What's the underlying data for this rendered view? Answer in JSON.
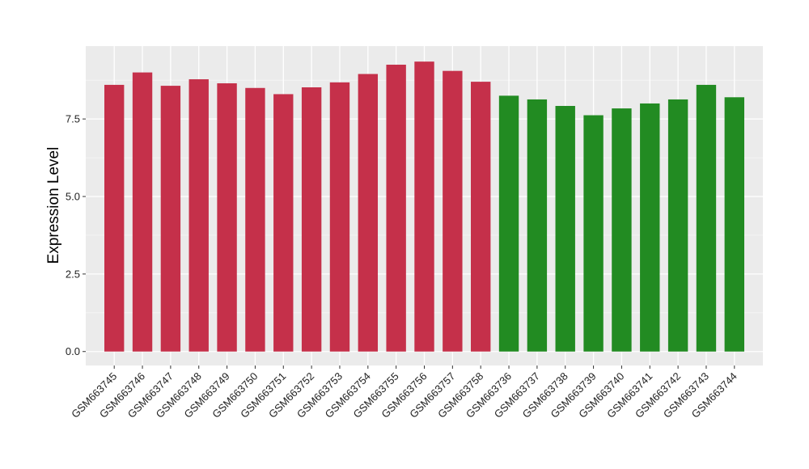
{
  "chart_data": {
    "type": "bar",
    "ylabel": "Expression Level",
    "xlabel": "",
    "ylim": [
      -0.45,
      9.85
    ],
    "yticks": [
      0.0,
      2.5,
      5.0,
      7.5
    ],
    "ytick_labels": [
      "0.0",
      "2.5",
      "5.0",
      "7.5"
    ],
    "categories": [
      "GSM663745",
      "GSM663746",
      "GSM663747",
      "GSM663748",
      "GSM663749",
      "GSM663750",
      "GSM663751",
      "GSM663752",
      "GSM663753",
      "GSM663754",
      "GSM663755",
      "GSM663756",
      "GSM663757",
      "GSM663758",
      "GSM663736",
      "GSM663737",
      "GSM663738",
      "GSM663739",
      "GSM663740",
      "GSM663741",
      "GSM663742",
      "GSM663743",
      "GSM663744"
    ],
    "values": [
      8.6,
      9.0,
      8.57,
      8.78,
      8.65,
      8.5,
      8.3,
      8.52,
      8.68,
      8.95,
      9.25,
      9.35,
      9.05,
      8.7,
      8.25,
      8.13,
      7.92,
      7.62,
      7.84,
      8.0,
      8.13,
      8.6,
      8.2
    ],
    "group_of_bar": [
      0,
      0,
      0,
      0,
      0,
      0,
      0,
      0,
      0,
      0,
      0,
      0,
      0,
      0,
      1,
      1,
      1,
      1,
      1,
      1,
      1,
      1,
      1
    ],
    "group_colors": [
      "#c5304a",
      "#228b22"
    ],
    "panel_background": "#ebebeb",
    "grid": true,
    "legend": "none"
  }
}
